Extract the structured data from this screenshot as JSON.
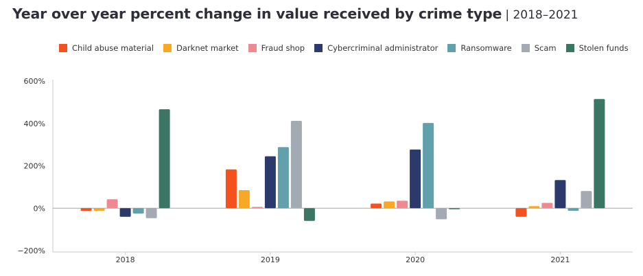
{
  "title": "Year over year percent change in value received by crime type",
  "subtitle": "| 2018–2021",
  "chart_data": {
    "type": "bar",
    "categories": [
      "2018",
      "2019",
      "2020",
      "2021"
    ],
    "ylim": [
      -200,
      600
    ],
    "yticks": [
      "600%",
      "400%",
      "200%",
      "0%",
      "−200%"
    ],
    "ytick_values": [
      600,
      400,
      200,
      0,
      -200
    ],
    "legend_position": "top",
    "grid": false,
    "series": [
      {
        "name": "Child abuse material",
        "color": "#f4511e",
        "values": [
          -12,
          183,
          22,
          -40
        ]
      },
      {
        "name": "Darknet market",
        "color": "#f9a825",
        "values": [
          -12,
          85,
          32,
          10
        ]
      },
      {
        "name": "Fraud shop",
        "color": "#ee8891",
        "values": [
          42,
          6,
          35,
          25
        ]
      },
      {
        "name": "Cybercriminal administrator",
        "color": "#2b3a6b",
        "values": [
          -40,
          245,
          277,
          133
        ]
      },
      {
        "name": "Ransomware",
        "color": "#61a0ac",
        "values": [
          -25,
          288,
          402,
          -12
        ]
      },
      {
        "name": "Scam",
        "color": "#a3aab3",
        "values": [
          -47,
          412,
          -52,
          81
        ]
      },
      {
        "name": "Stolen funds",
        "color": "#3b7563",
        "values": [
          467,
          -60,
          -5,
          515
        ]
      }
    ]
  }
}
